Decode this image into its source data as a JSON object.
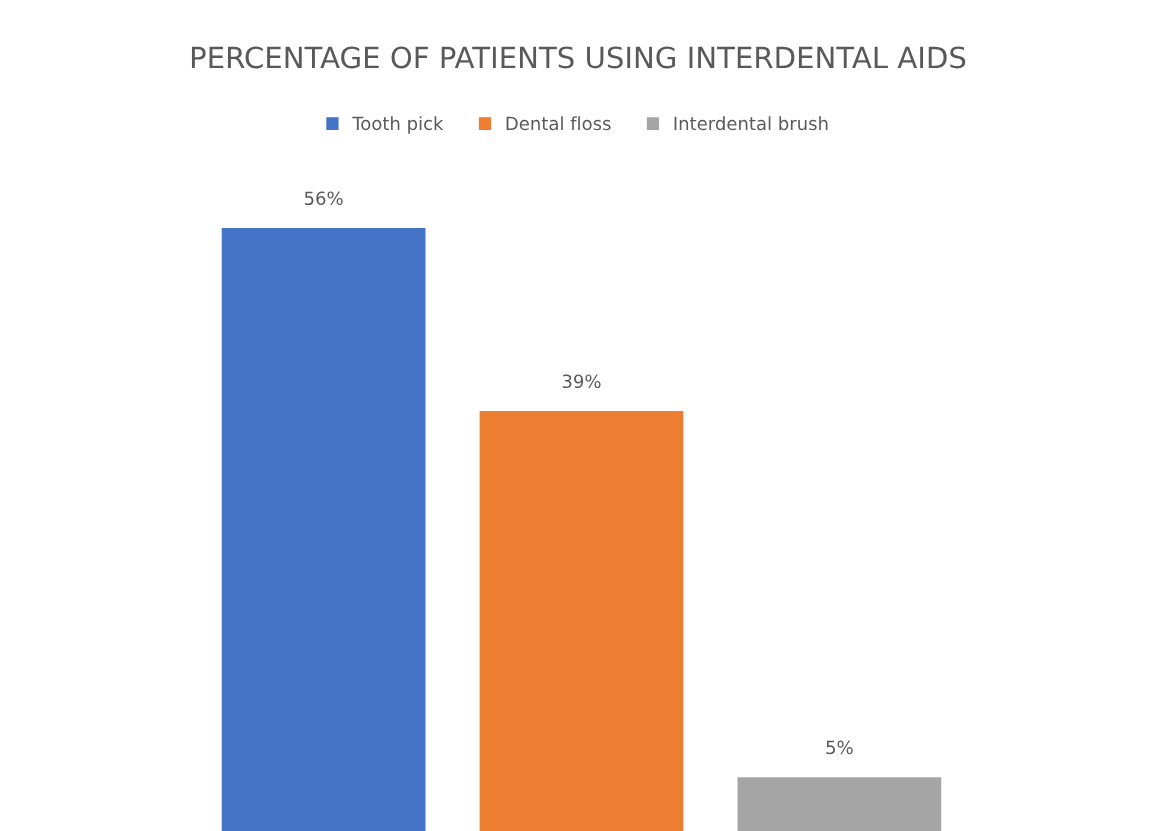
{
  "chart_data": {
    "type": "bar",
    "title": "PERCENTAGE OF PATIENTS USING INTERDENTAL AIDS",
    "categories": [
      null
    ],
    "legend": "top",
    "series": [
      {
        "name": "Tooth pick",
        "color": "#4472c4",
        "values": [
          56
        ],
        "value_labels": [
          "56%"
        ]
      },
      {
        "name": "Dental floss",
        "color": "#ed7d31",
        "values": [
          39
        ],
        "value_labels": [
          "39%"
        ]
      },
      {
        "name": "Interdental brush",
        "color": "#a5a5a5",
        "values": [
          5
        ],
        "value_labels": [
          "5%"
        ]
      }
    ]
  }
}
